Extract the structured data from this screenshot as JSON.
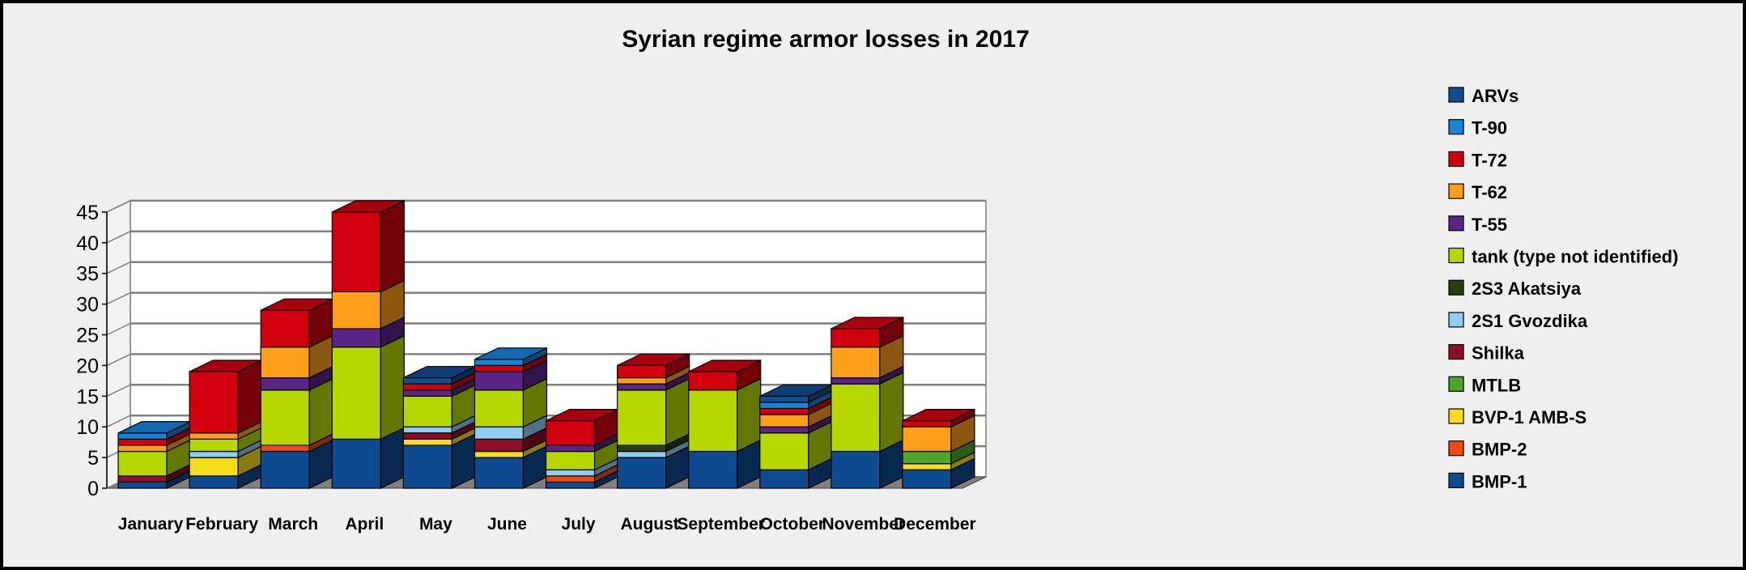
{
  "chart_data": {
    "type": "bar",
    "stacked": true,
    "three_d": true,
    "title": "Syrian regime armor losses in 2017",
    "xlabel": "",
    "ylabel": "",
    "ylim": [
      0,
      45
    ],
    "yticks": [
      "0",
      "5",
      "10",
      "15",
      "20",
      "25",
      "30",
      "35",
      "40",
      "45"
    ],
    "grid": true,
    "legend_position": "right",
    "categories": [
      "January",
      "February",
      "March",
      "April",
      "May",
      "June",
      "July",
      "August",
      "September",
      "October",
      "November",
      "December"
    ],
    "series": [
      {
        "name": "BMP-1",
        "color": "#0d4a8f",
        "values": [
          1,
          2,
          6,
          8,
          7,
          5,
          1,
          5,
          6,
          3,
          6,
          3
        ]
      },
      {
        "name": "BMP-2",
        "color": "#f04a14",
        "values": [
          0,
          0,
          1,
          0,
          0,
          0,
          1,
          0,
          0,
          0,
          0,
          0
        ]
      },
      {
        "name": "BVP-1 AMB-S",
        "color": "#f7dc1e",
        "values": [
          0,
          3,
          0,
          0,
          1,
          1,
          0,
          0,
          0,
          0,
          0,
          1
        ]
      },
      {
        "name": "MTLB",
        "color": "#4ea52e",
        "values": [
          0,
          0,
          0,
          0,
          0,
          0,
          0,
          0,
          0,
          0,
          0,
          2
        ]
      },
      {
        "name": "Shilka",
        "color": "#8c0e27",
        "values": [
          1,
          0,
          0,
          0,
          1,
          2,
          0,
          0,
          0,
          0,
          0,
          0
        ]
      },
      {
        "name": "2S1 Gvozdika",
        "color": "#8fcdf2",
        "values": [
          0,
          1,
          0,
          0,
          1,
          2,
          1,
          1,
          0,
          0,
          0,
          0
        ]
      },
      {
        "name": "2S3 Akatsiya",
        "color": "#283e12",
        "values": [
          0,
          0,
          0,
          0,
          0,
          0,
          0,
          1,
          0,
          0,
          0,
          0
        ]
      },
      {
        "name": "tank (type not identified)",
        "color": "#b6d800",
        "values": [
          4,
          2,
          9,
          15,
          5,
          6,
          3,
          9,
          10,
          6,
          11,
          0
        ]
      },
      {
        "name": "T-55",
        "color": "#5b2488",
        "values": [
          0,
          0,
          2,
          3,
          1,
          3,
          1,
          1,
          0,
          1,
          1,
          0
        ]
      },
      {
        "name": "T-62",
        "color": "#ff9f1a",
        "values": [
          1,
          1,
          5,
          6,
          0,
          0,
          0,
          1,
          0,
          2,
          5,
          4
        ]
      },
      {
        "name": "T-72",
        "color": "#d2000f",
        "values": [
          1,
          10,
          6,
          13,
          1,
          1,
          4,
          2,
          3,
          1,
          3,
          1
        ]
      },
      {
        "name": "T-90",
        "color": "#1585d8",
        "values": [
          1,
          0,
          0,
          0,
          0,
          1,
          0,
          0,
          0,
          1,
          0,
          0
        ]
      },
      {
        "name": "ARVs",
        "color": "#114e90",
        "values": [
          0,
          0,
          0,
          0,
          1,
          0,
          0,
          0,
          0,
          1,
          0,
          0
        ]
      }
    ]
  }
}
